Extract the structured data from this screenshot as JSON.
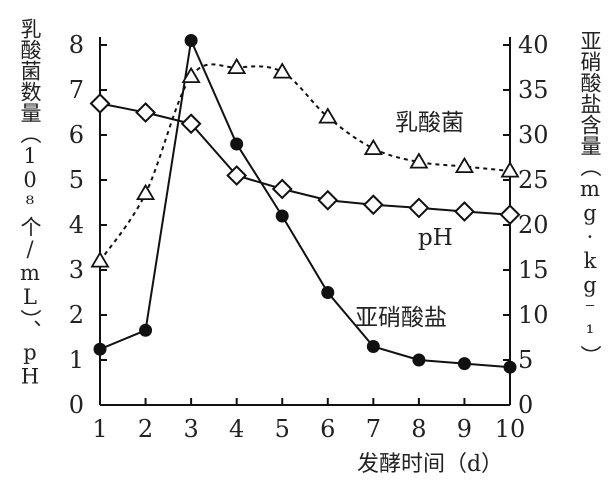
{
  "chart_data": {
    "type": "line",
    "xlabel": "发酵时间（d）",
    "ylabel_left": "乳酸菌数量（10⁸个/mL）、pH",
    "ylabel_right": "亚硝酸盐含量（mg·kg⁻¹）",
    "x": [
      1,
      2,
      3,
      4,
      5,
      6,
      7,
      8,
      9,
      10
    ],
    "xlim": [
      1,
      10
    ],
    "ylim_left": [
      0,
      8
    ],
    "ylim_right": [
      0,
      40
    ],
    "yticks_left": [
      0,
      1,
      2,
      3,
      4,
      5,
      6,
      7,
      8
    ],
    "yticks_right": [
      0,
      5,
      10,
      15,
      20,
      25,
      30,
      35,
      40
    ],
    "series": [
      {
        "name": "乳酸菌",
        "axis": "left",
        "style": "dashed",
        "marker": "triangle",
        "values": [
          3.2,
          4.7,
          7.3,
          7.5,
          7.4,
          6.4,
          5.7,
          5.4,
          5.3,
          5.2
        ]
      },
      {
        "name": "pH",
        "axis": "left",
        "style": "solid",
        "marker": "diamond",
        "values": [
          6.7,
          6.5,
          6.25,
          5.1,
          4.8,
          4.55,
          4.45,
          4.38,
          4.3,
          4.23
        ]
      },
      {
        "name": "亚硝酸盐",
        "axis": "right",
        "style": "solid",
        "marker": "circle",
        "values": [
          6.2,
          8.3,
          40.5,
          29.0,
          21.0,
          12.5,
          6.5,
          5.0,
          4.6,
          4.2
        ]
      }
    ]
  }
}
